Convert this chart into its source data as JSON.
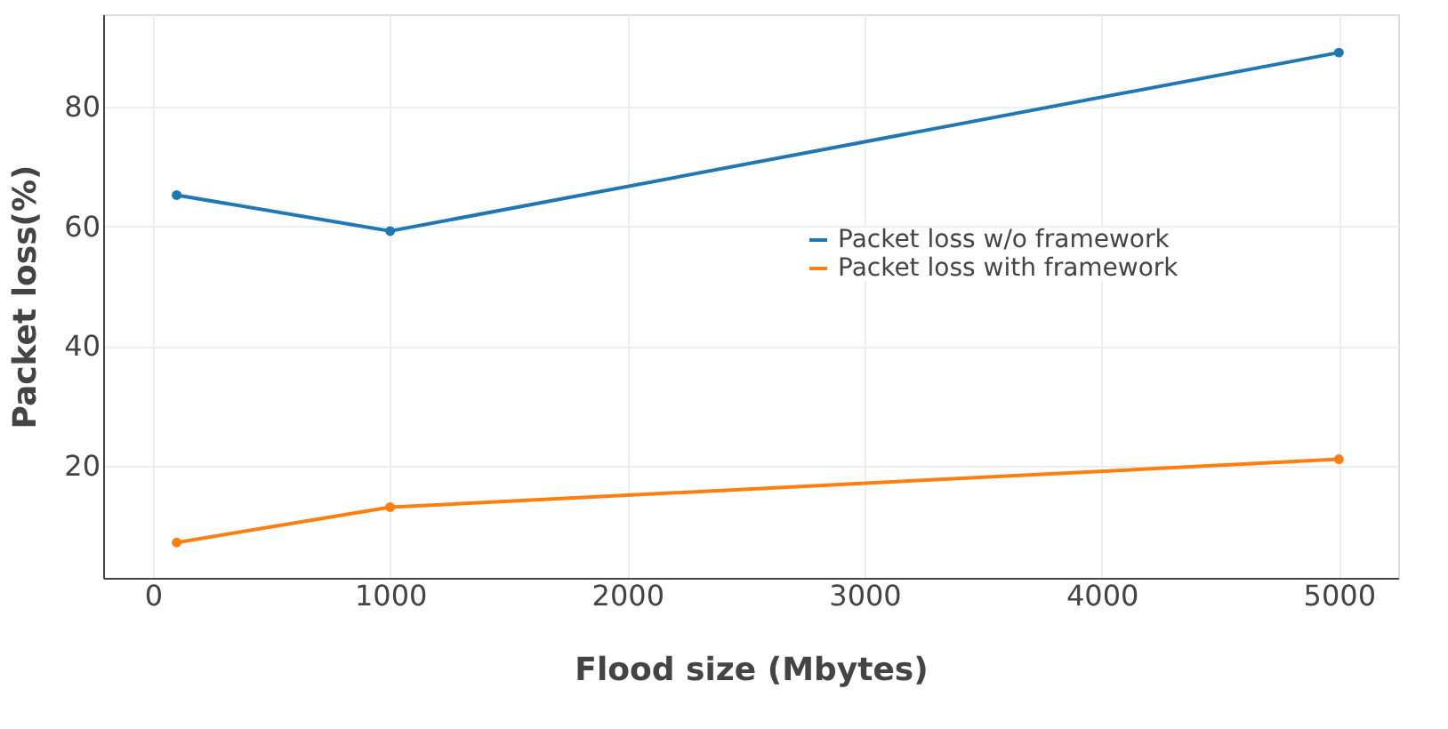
{
  "chart_data": {
    "type": "line",
    "xlabel": "Flood size (Mbytes)",
    "ylabel": "Packet loss(%)",
    "x": [
      100,
      1000,
      5000
    ],
    "series": [
      {
        "name": "Packet loss w/o framework",
        "color": "#1f77b4",
        "values": [
          65.2,
          59.2,
          89
        ]
      },
      {
        "name": "Packet loss with framework",
        "color": "#ff7f0e",
        "values": [
          7.2,
          13.1,
          21.1
        ]
      }
    ],
    "xlim": [
      -210,
      5250
    ],
    "xticks": [
      0,
      1000,
      2000,
      3000,
      4000,
      5000
    ],
    "ylim": [
      1.3,
      95.4
    ],
    "yticks": [
      20,
      40,
      60,
      80
    ],
    "grid": true,
    "legend": "right",
    "marker": "circle",
    "line_style": "solid"
  }
}
